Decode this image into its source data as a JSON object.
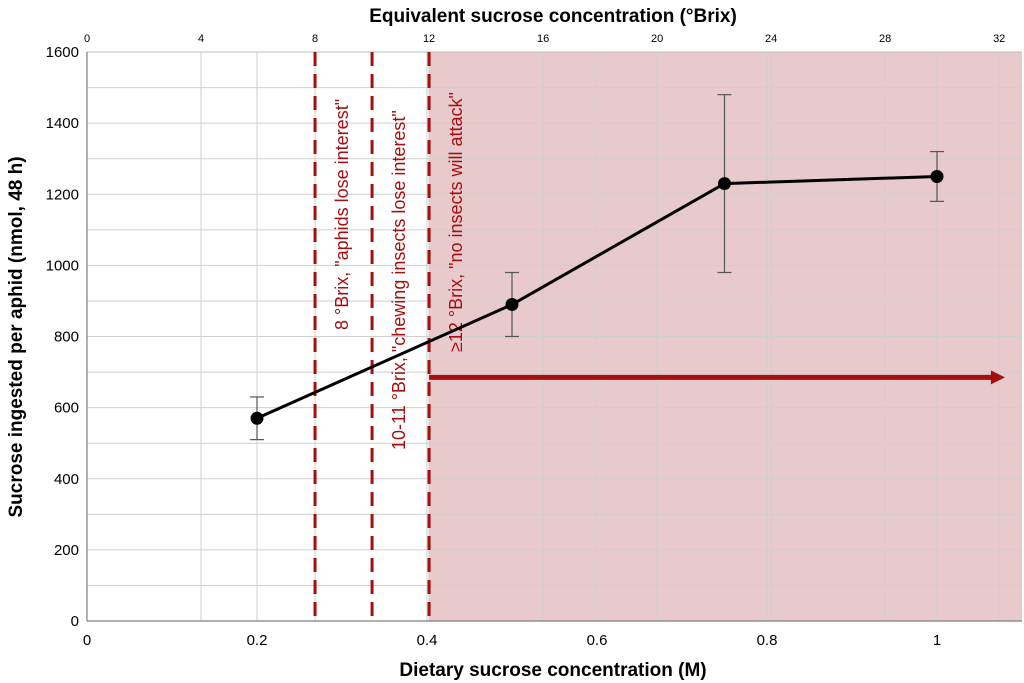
{
  "chart_data": {
    "type": "line",
    "title": "",
    "xlabel": "Dietary sucrose concentration (M)",
    "ylabel": "Sucrose ingested per aphid (nmol, 48 h)",
    "x2label": "Equivalent sucrose concentration (°Brix)",
    "xlim": [
      0,
      1.1
    ],
    "ylim": [
      0,
      1600
    ],
    "x2lim": [
      0,
      32.8
    ],
    "grid": true,
    "x_ticks": [
      {
        "value": 0,
        "label": "0"
      },
      {
        "value": 0.2,
        "label": "0.2"
      },
      {
        "value": 0.4,
        "label": "0.4"
      },
      {
        "value": 0.6,
        "label": "0.6"
      },
      {
        "value": 0.8,
        "label": "0.8"
      },
      {
        "value": 1.0,
        "label": "1"
      }
    ],
    "y_ticks": [
      {
        "value": 0,
        "label": "0"
      },
      {
        "value": 200,
        "label": "200"
      },
      {
        "value": 400,
        "label": "400"
      },
      {
        "value": 600,
        "label": "600"
      },
      {
        "value": 800,
        "label": "800"
      },
      {
        "value": 1000,
        "label": "1000"
      },
      {
        "value": 1200,
        "label": "1200"
      },
      {
        "value": 1400,
        "label": "1400"
      },
      {
        "value": 1600,
        "label": "1600"
      }
    ],
    "x2_ticks": [
      {
        "value": 0,
        "label": "0"
      },
      {
        "value": 4,
        "label": "4"
      },
      {
        "value": 8,
        "label": "8"
      },
      {
        "value": 12,
        "label": "12"
      },
      {
        "value": 16,
        "label": "16"
      },
      {
        "value": 20,
        "label": "20"
      },
      {
        "value": 24,
        "label": "24"
      },
      {
        "value": 28,
        "label": "28"
      },
      {
        "value": 32,
        "label": "32"
      }
    ],
    "series": [
      {
        "color": "#000000",
        "points": [
          {
            "x": 0.2,
            "y": 570,
            "err_low": 510,
            "err_high": 630
          },
          {
            "x": 0.5,
            "y": 890,
            "err_low": 800,
            "err_high": 980
          },
          {
            "x": 0.75,
            "y": 1230,
            "err_low": 980,
            "err_high": 1480
          },
          {
            "x": 1.0,
            "y": 1250,
            "err_low": 1180,
            "err_high": 1320
          }
        ]
      }
    ],
    "thresholds": [
      {
        "brix": 8,
        "label": "8 °Brix, \"aphids lose interest\"",
        "color": "#a50f0f"
      },
      {
        "brix": 10,
        "label": "10-11 °Brix, \"chewing insects lose interest\"",
        "color": "#a50f0f"
      },
      {
        "brix": 12,
        "label": "≥12 °Brix, \"no insects will attack\"",
        "color": "#a50f0f"
      }
    ],
    "shaded_region": {
      "from_brix": 12,
      "to_brix": 32.8,
      "color": "#e8c9cc"
    },
    "arrow": {
      "from_brix": 12,
      "to_brix": 32.2,
      "y": 685,
      "color": "#a50f0f"
    }
  }
}
